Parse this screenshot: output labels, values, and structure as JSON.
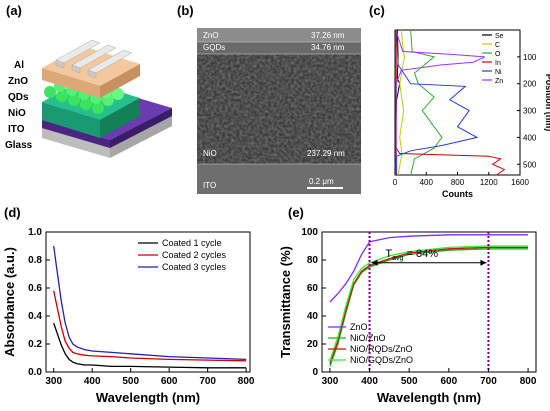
{
  "panels": {
    "a": "(a)",
    "b": "(b)",
    "c": "(c)",
    "d": "(d)",
    "e": "(e)"
  },
  "device": {
    "layers": [
      "Al",
      "ZnO",
      "QDs",
      "NiO",
      "ITO",
      "Glass"
    ],
    "colors": {
      "Al": "#d8d8d8",
      "ZnO": "#f2c9a0",
      "QDs": "#46e06a",
      "NiO": "#1fae82",
      "ITO": "#5a2f9e",
      "Glass": "#cfcfcf"
    }
  },
  "sem": {
    "labels": [
      {
        "layer": "ZnO",
        "thickness": "37.26 nm"
      },
      {
        "layer": "GQDs",
        "thickness": "34.76 nm"
      },
      {
        "layer": "NiO",
        "thickness": "237.29 nm"
      },
      {
        "layer": "ITO",
        "thickness": ""
      }
    ],
    "scalebar": "0.2 μm"
  },
  "chart_data": [
    {
      "id": "c",
      "type": "line",
      "xlabel": "Counts",
      "ylabel": "Position (nm)",
      "xlim": [
        0,
        1600
      ],
      "ylim": [
        0,
        540
      ],
      "y_inverted": true,
      "xticks": [
        0,
        400,
        800,
        1200,
        1600
      ],
      "yticks": [
        100,
        200,
        300,
        400,
        500
      ],
      "legend_position": "top-right",
      "series": [
        {
          "name": "Se",
          "color": "#000000",
          "points": [
            [
              30,
              0
            ],
            [
              40,
              100
            ],
            [
              30,
              180
            ],
            [
              60,
              200
            ],
            [
              20,
              260
            ],
            [
              10,
              360
            ],
            [
              15,
              460
            ],
            [
              10,
              540
            ]
          ]
        },
        {
          "name": "C",
          "color": "#c8c800",
          "points": [
            [
              80,
              0
            ],
            [
              100,
              60
            ],
            [
              120,
              100
            ],
            [
              60,
              200
            ],
            [
              110,
              300
            ],
            [
              60,
              400
            ],
            [
              90,
              460
            ],
            [
              40,
              540
            ]
          ]
        },
        {
          "name": "O",
          "color": "#2faa2f",
          "points": [
            [
              200,
              0
            ],
            [
              220,
              80
            ],
            [
              500,
              100
            ],
            [
              250,
              160
            ],
            [
              300,
              200
            ],
            [
              500,
              250
            ],
            [
              350,
              300
            ],
            [
              600,
              400
            ],
            [
              500,
              440
            ],
            [
              250,
              480
            ],
            [
              200,
              540
            ]
          ]
        },
        {
          "name": "In",
          "color": "#cc0000",
          "points": [
            [
              15,
              0
            ],
            [
              15,
              440
            ],
            [
              60,
              460
            ],
            [
              1200,
              470
            ],
            [
              1350,
              480
            ],
            [
              1250,
              500
            ],
            [
              1400,
              520
            ],
            [
              1300,
              540
            ]
          ]
        },
        {
          "name": "Ni",
          "color": "#1f3fcf",
          "points": [
            [
              20,
              0
            ],
            [
              40,
              130
            ],
            [
              200,
              200
            ],
            [
              900,
              210
            ],
            [
              700,
              260
            ],
            [
              950,
              300
            ],
            [
              800,
              360
            ],
            [
              1050,
              400
            ],
            [
              600,
              430
            ],
            [
              200,
              450
            ],
            [
              20,
              470
            ],
            [
              20,
              540
            ]
          ]
        },
        {
          "name": "Zn",
          "color": "#9933ff",
          "points": [
            [
              10,
              0
            ],
            [
              100,
              80
            ],
            [
              700,
              90
            ],
            [
              1150,
              100
            ],
            [
              1000,
              120
            ],
            [
              600,
              130
            ],
            [
              80,
              150
            ],
            [
              15,
              200
            ],
            [
              10,
              540
            ]
          ]
        }
      ]
    },
    {
      "id": "d",
      "type": "line",
      "xlabel": "Wavelength (nm)",
      "ylabel": "Absorbance (a.u.)",
      "xlim": [
        280,
        810
      ],
      "ylim": [
        0,
        1.0
      ],
      "xticks": [
        300,
        400,
        500,
        600,
        700,
        800
      ],
      "yticks": [
        0.0,
        0.2,
        0.4,
        0.6,
        0.8,
        1.0
      ],
      "legend_position": "top-right",
      "series": [
        {
          "name": "Coated 1 cycle",
          "color": "#000000",
          "x": [
            300,
            310,
            320,
            330,
            340,
            350,
            360,
            380,
            400,
            450,
            500,
            600,
            700,
            800
          ],
          "y": [
            0.35,
            0.27,
            0.19,
            0.13,
            0.09,
            0.07,
            0.06,
            0.05,
            0.05,
            0.04,
            0.04,
            0.035,
            0.03,
            0.03
          ]
        },
        {
          "name": "Coated 2 cycles",
          "color": "#cc0000",
          "x": [
            300,
            310,
            320,
            330,
            340,
            350,
            360,
            380,
            400,
            450,
            500,
            600,
            700,
            800
          ],
          "y": [
            0.58,
            0.45,
            0.32,
            0.22,
            0.17,
            0.14,
            0.13,
            0.12,
            0.115,
            0.11,
            0.1,
            0.09,
            0.085,
            0.08
          ]
        },
        {
          "name": "Coated 3 cycles",
          "color": "#2222aa",
          "x": [
            300,
            310,
            320,
            330,
            340,
            350,
            360,
            380,
            400,
            450,
            500,
            600,
            700,
            800
          ],
          "y": [
            0.9,
            0.7,
            0.5,
            0.35,
            0.25,
            0.2,
            0.18,
            0.16,
            0.15,
            0.14,
            0.13,
            0.11,
            0.1,
            0.09
          ]
        }
      ]
    },
    {
      "id": "e",
      "type": "line",
      "xlabel": "Wavelength (nm)",
      "ylabel": "Transmittance (%)",
      "xlim": [
        280,
        820
      ],
      "ylim": [
        0,
        100
      ],
      "xticks": [
        300,
        400,
        500,
        600,
        700,
        800
      ],
      "yticks": [
        0,
        20,
        40,
        60,
        80,
        100
      ],
      "legend_position": "bottom-left",
      "vlines": [
        400,
        700
      ],
      "annotation_prefix": "T",
      "annotation_sub": "avg",
      "annotation_value": "= 84%",
      "series": [
        {
          "name": "ZnO",
          "color": "#7b2cff",
          "x": [
            300,
            320,
            340,
            360,
            380,
            400,
            450,
            500,
            600,
            700,
            800
          ],
          "y": [
            50,
            56,
            63,
            72,
            84,
            93,
            96,
            97,
            98,
            98,
            98
          ]
        },
        {
          "name": "NiO/ZnO",
          "color": "#22aa22",
          "x": [
            300,
            320,
            340,
            360,
            380,
            400,
            450,
            500,
            600,
            700,
            800
          ],
          "y": [
            4,
            20,
            42,
            62,
            71,
            75,
            80,
            84,
            87,
            88,
            88
          ]
        },
        {
          "name": "NiO/RQDs/ZnO",
          "color": "#cc1111",
          "x": [
            300,
            320,
            340,
            360,
            380,
            400,
            450,
            500,
            600,
            700,
            800
          ],
          "y": [
            6,
            22,
            44,
            63,
            72,
            76,
            81,
            85,
            88,
            89,
            89
          ]
        },
        {
          "name": "NiO/GQDs/ZnO",
          "color": "#33ee33",
          "x": [
            300,
            320,
            340,
            360,
            380,
            400,
            450,
            500,
            600,
            700,
            800
          ],
          "y": [
            8,
            25,
            47,
            66,
            74,
            78,
            83,
            86,
            89,
            90,
            90
          ]
        }
      ]
    }
  ]
}
